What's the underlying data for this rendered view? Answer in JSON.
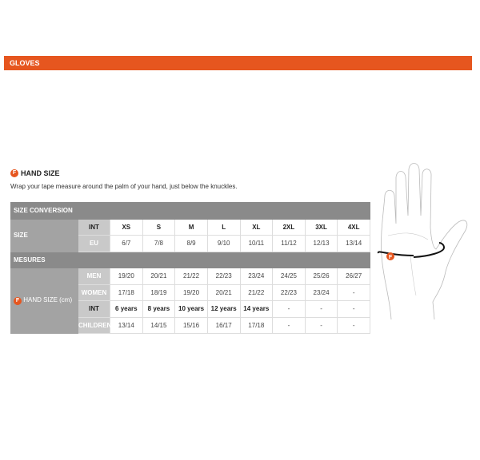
{
  "header": {
    "title": "GLOVES"
  },
  "section": {
    "icon": "f-badge-icon",
    "icon_letter": "F",
    "title": "HAND SIZE",
    "description": "Wrap your tape measure around the palm of your hand, just below the knuckles."
  },
  "table": {
    "size_conversion": "SIZE CONVERSION",
    "size_label": "SIZE",
    "int_label": "INT",
    "eu_label": "EU",
    "int_sizes": [
      "XS",
      "S",
      "M",
      "L",
      "XL",
      "2XL",
      "3XL",
      "4XL"
    ],
    "eu_sizes": [
      "6/7",
      "7/8",
      "8/9",
      "9/10",
      "10/11",
      "11/12",
      "12/13",
      "13/14"
    ],
    "mesures": "MESURES",
    "hand_size_label": "HAND SIZE (cm)",
    "men_label": "MEN",
    "men": [
      "19/20",
      "20/21",
      "21/22",
      "22/23",
      "23/24",
      "24/25",
      "25/26",
      "26/27"
    ],
    "women_label": "WOMEN",
    "women": [
      "17/18",
      "18/19",
      "19/20",
      "20/21",
      "21/22",
      "22/23",
      "23/24",
      "-"
    ],
    "children_int_label": "INT",
    "children_int": [
      "6 years",
      "8 years",
      "10 years",
      "12 years",
      "14 years",
      "-",
      "-",
      "-"
    ],
    "children_label": "CHILDREN",
    "children": [
      "13/14",
      "14/15",
      "15/16",
      "16/17",
      "17/18",
      "-",
      "-",
      "-"
    ]
  },
  "colors": {
    "accent": "#e6561f",
    "header_gray": "#8a8a8a"
  }
}
